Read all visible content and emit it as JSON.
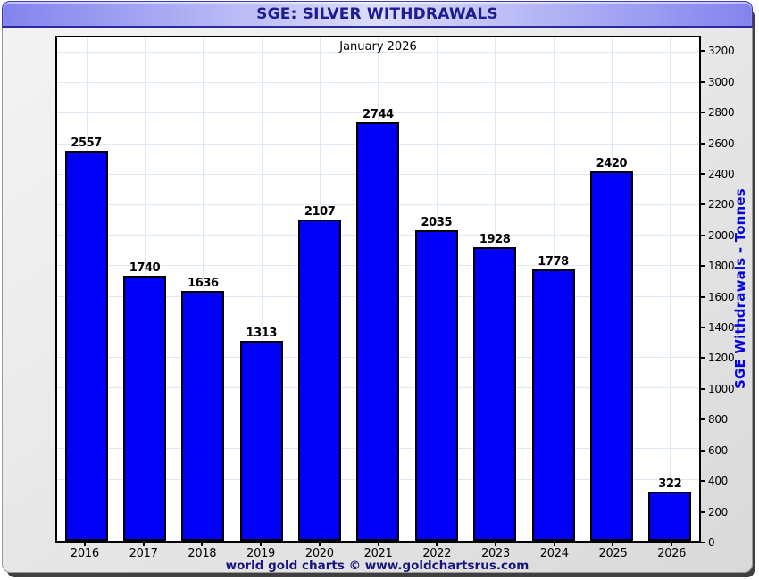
{
  "window": {
    "title": "SGE: SILVER WITHDRAWALS",
    "footer": "world gold charts © www.goldchartsrus.com"
  },
  "chart_data": {
    "type": "bar",
    "title": "January 2026",
    "categories": [
      "2016",
      "2017",
      "2018",
      "2019",
      "2020",
      "2021",
      "2022",
      "2023",
      "2024",
      "2025",
      "2026"
    ],
    "values": [
      2557,
      1740,
      1636,
      1313,
      2107,
      2744,
      2035,
      1928,
      1778,
      2420,
      322
    ],
    "xlabel": "",
    "ylabel": "SGE Withdrawals - Tonnes",
    "ylim": [
      0,
      3300
    ],
    "ytick_step": 200,
    "ytick_max": 3200,
    "grid": true,
    "axis_side": "right",
    "legend_position": "none"
  },
  "colors": {
    "bar_color": "#0000f6",
    "bar_border": "#000000",
    "grid_color": "#dde8f3",
    "title_text": "#1c1c94",
    "titlebar_edge": "#8383ee",
    "titlebar_center": "#dcdcfa",
    "titlebar_border": "#2a2aa0",
    "ylabel_text": "#0505e0",
    "footer_text": "#15157d"
  }
}
